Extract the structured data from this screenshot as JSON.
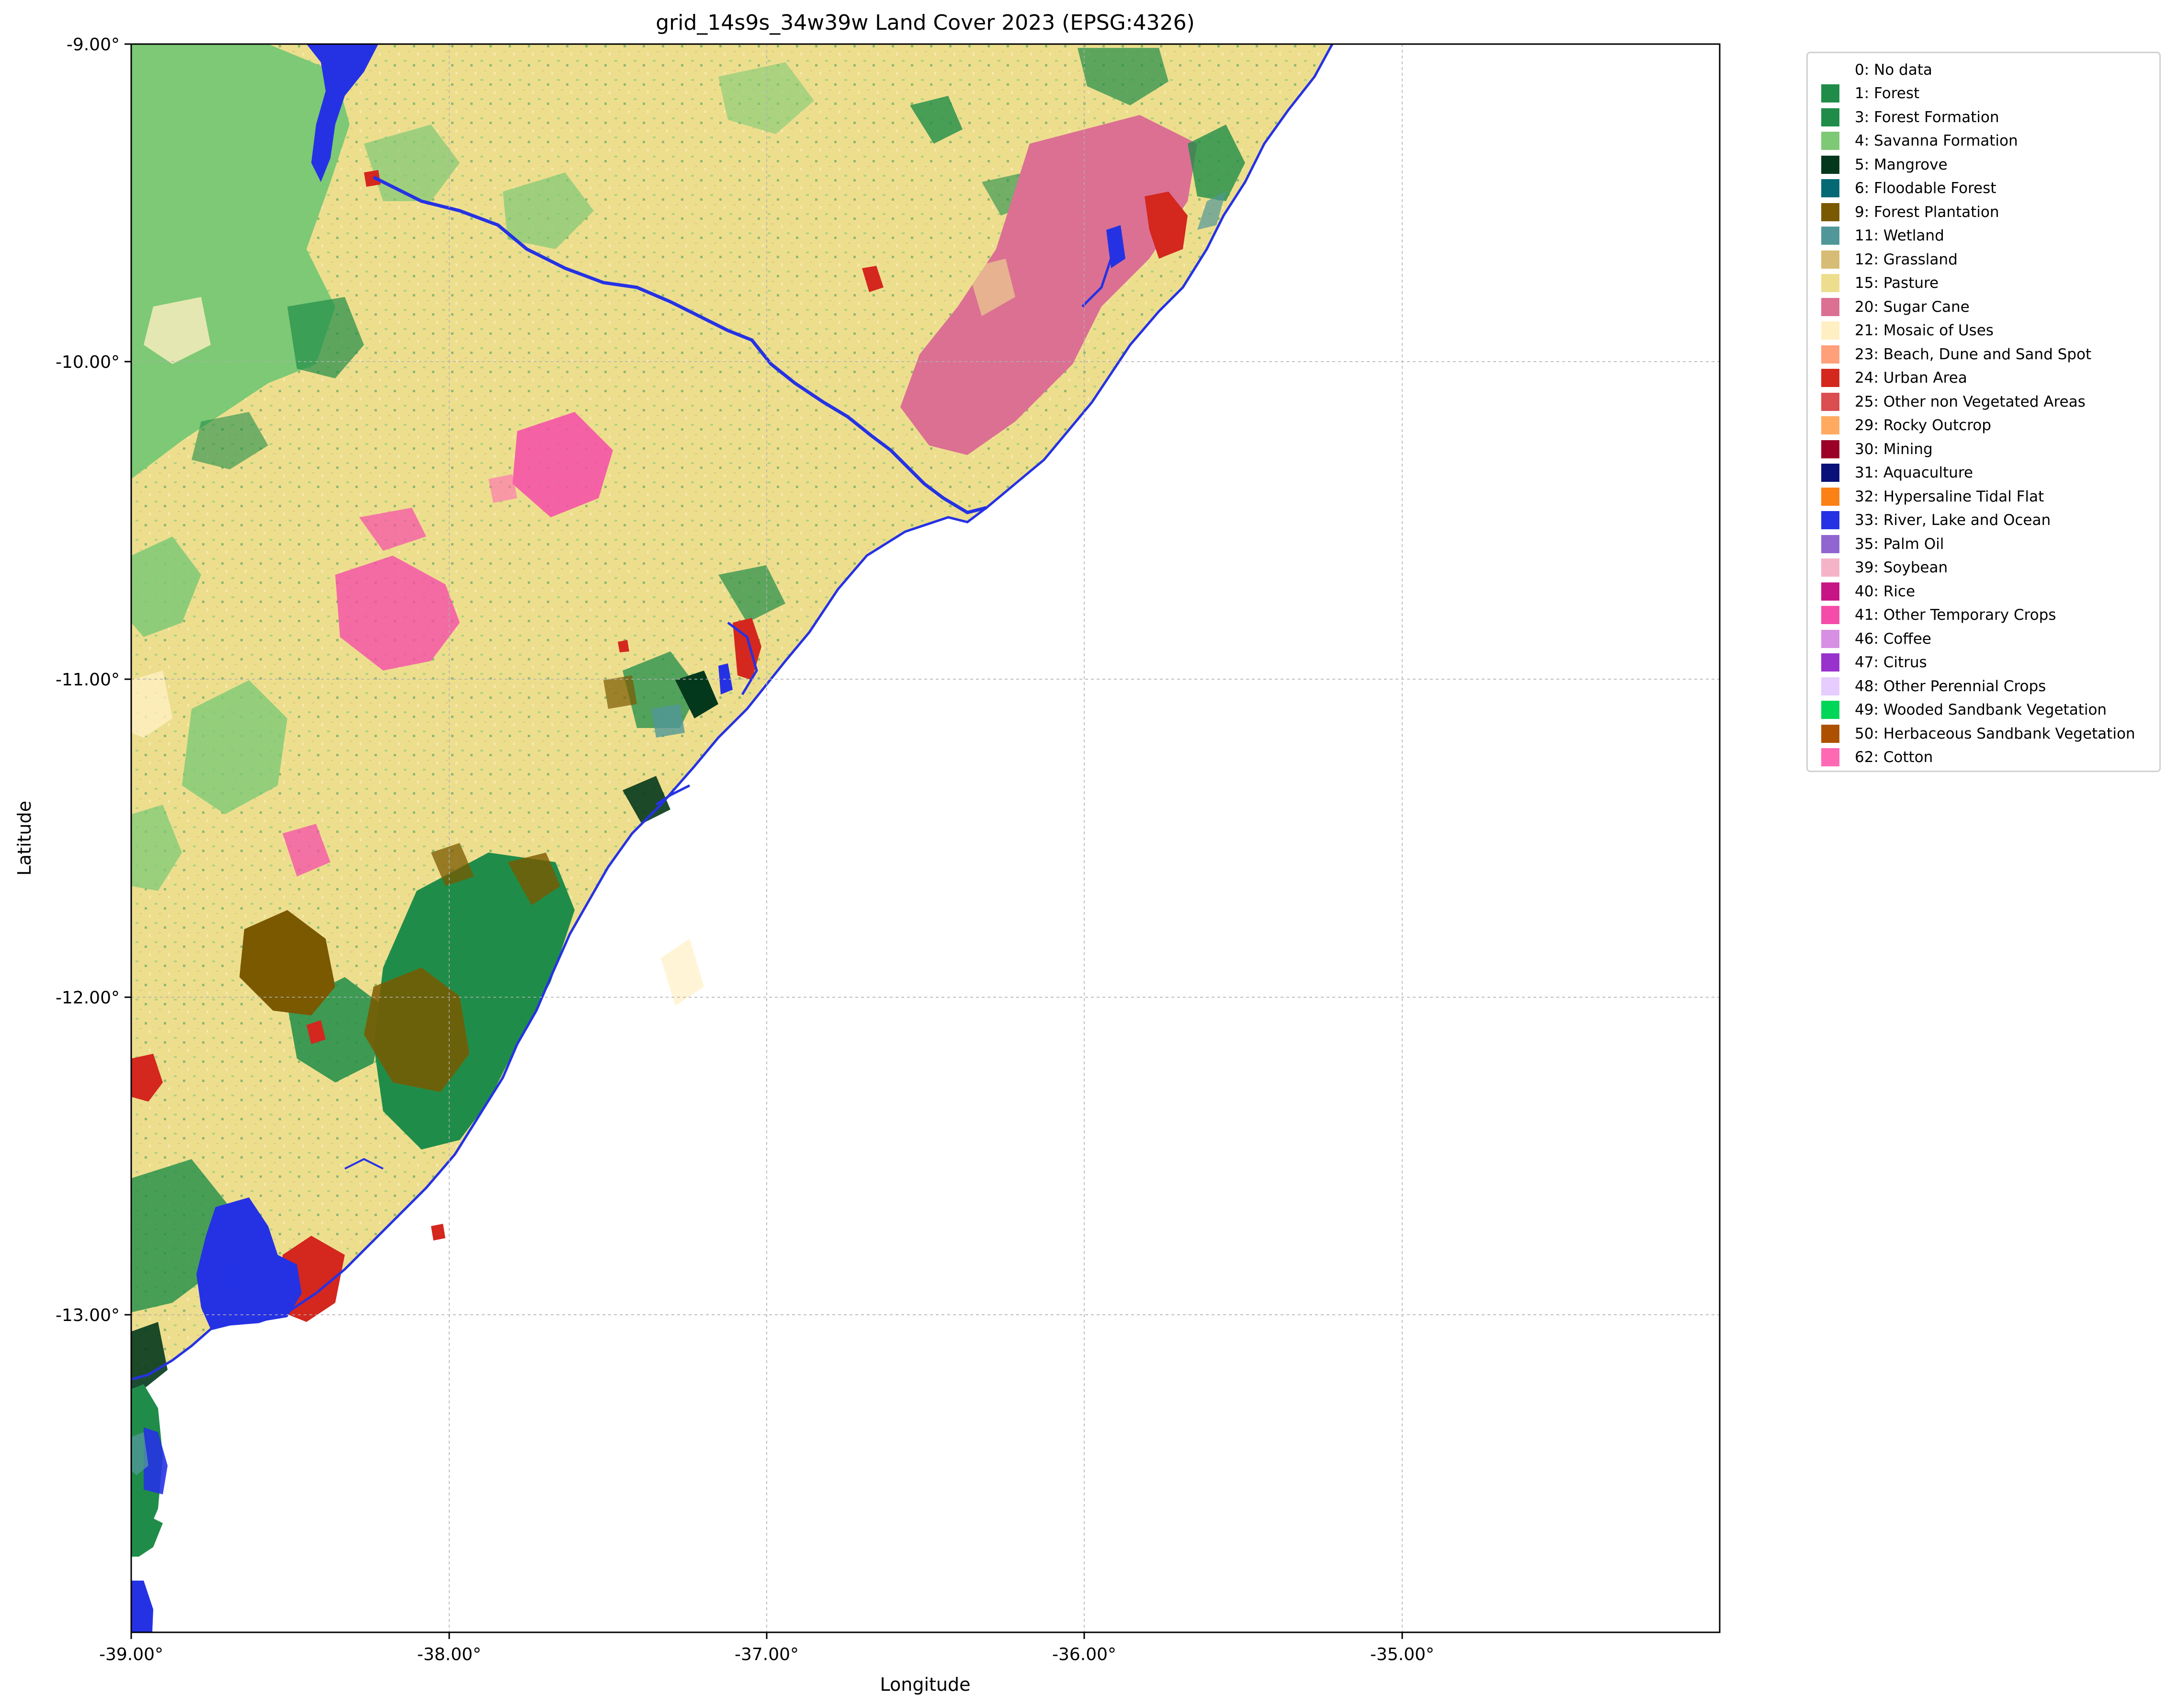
{
  "map": {
    "title": "grid_14s9s_34w39w Land Cover 2023 (EPSG:4326)",
    "xlabel": "Longitude",
    "ylabel": "Latitude",
    "x_ticks": [
      "-39.00°",
      "-38.00°",
      "-37.00°",
      "-36.00°",
      "-35.00°"
    ],
    "y_ticks": [
      "-9.00°",
      "-10.00°",
      "-11.00°",
      "-12.00°",
      "-13.00°"
    ],
    "grid": true,
    "legend_position": "outside-right",
    "legend": [
      {
        "label": "0: No data",
        "color": "#ffffff"
      },
      {
        "label": "1: Forest",
        "color": "#1f8d49"
      },
      {
        "label": "3: Forest Formation",
        "color": "#1f8d49"
      },
      {
        "label": "4: Savanna Formation",
        "color": "#7dc975"
      },
      {
        "label": "5: Mangrove",
        "color": "#04381d"
      },
      {
        "label": "6: Floodable Forest",
        "color": "#026975"
      },
      {
        "label": "9: Forest Plantation",
        "color": "#7a5900"
      },
      {
        "label": "11: Wetland",
        "color": "#519799"
      },
      {
        "label": "12: Grassland",
        "color": "#d6bc74"
      },
      {
        "label": "15: Pasture",
        "color": "#edde8e"
      },
      {
        "label": "20: Sugar Cane",
        "color": "#db7093"
      },
      {
        "label": "21: Mosaic of Uses",
        "color": "#ffefc3"
      },
      {
        "label": "23: Beach, Dune and Sand Spot",
        "color": "#ffa07a"
      },
      {
        "label": "24: Urban Area",
        "color": "#d4271e"
      },
      {
        "label": "25: Other non Vegetated Areas",
        "color": "#db4d4f"
      },
      {
        "label": "29: Rocky Outcrop",
        "color": "#ffaa5f"
      },
      {
        "label": "30: Mining",
        "color": "#9c0027"
      },
      {
        "label": "31: Aquaculture",
        "color": "#091077"
      },
      {
        "label": "32: Hypersaline Tidal Flat",
        "color": "#fc8114"
      },
      {
        "label": "33: River, Lake and Ocean",
        "color": "#2532e4"
      },
      {
        "label": "35: Palm Oil",
        "color": "#9065d0"
      },
      {
        "label": "39: Soybean",
        "color": "#f5b3c8"
      },
      {
        "label": "40: Rice",
        "color": "#c71585"
      },
      {
        "label": "41: Other Temporary Crops",
        "color": "#f54ca9"
      },
      {
        "label": "46: Coffee",
        "color": "#d68fe2"
      },
      {
        "label": "47: Citrus",
        "color": "#9932cc"
      },
      {
        "label": "48: Other Perennial Crops",
        "color": "#e6ccff"
      },
      {
        "label": "49: Wooded Sandbank Vegetation",
        "color": "#02d659"
      },
      {
        "label": "50: Herbaceous Sandbank Vegetation",
        "color": "#ad5100"
      },
      {
        "label": "62: Cotton",
        "color": "#ff69b4"
      }
    ]
  }
}
